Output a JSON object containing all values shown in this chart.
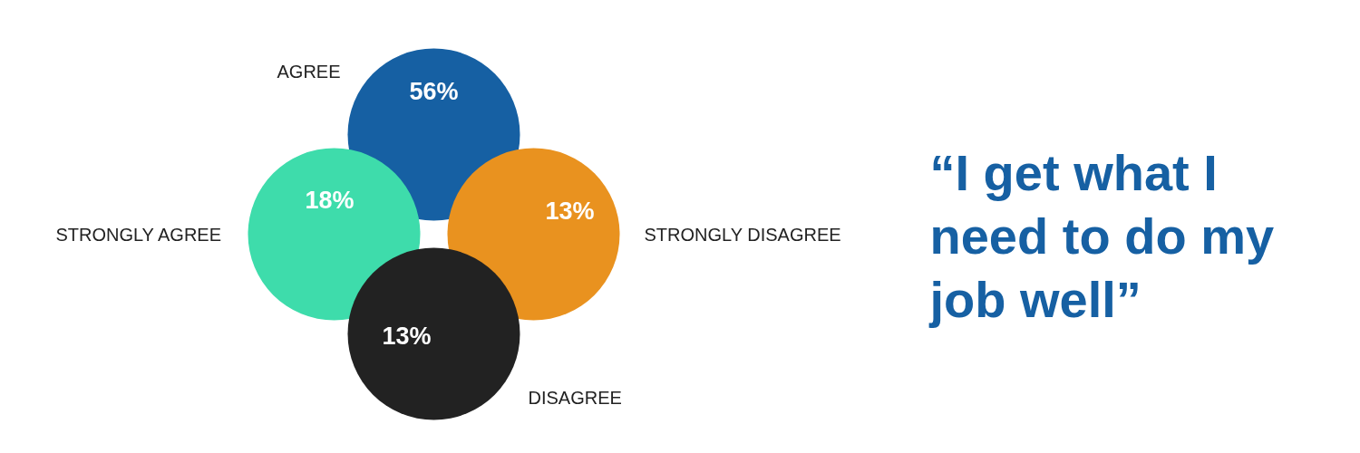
{
  "chart_data": {
    "type": "other",
    "title": "“I get what I need to do my job well”",
    "categories": [
      "AGREE",
      "STRONGLY AGREE",
      "STRONGLY DISAGREE",
      "DISAGREE"
    ],
    "values": [
      56,
      18,
      13,
      13
    ],
    "value_labels": [
      "56%",
      "18%",
      "13%",
      "13%"
    ],
    "colors": [
      "#1660a3",
      "#3edcab",
      "#e9921f",
      "#222222"
    ]
  }
}
